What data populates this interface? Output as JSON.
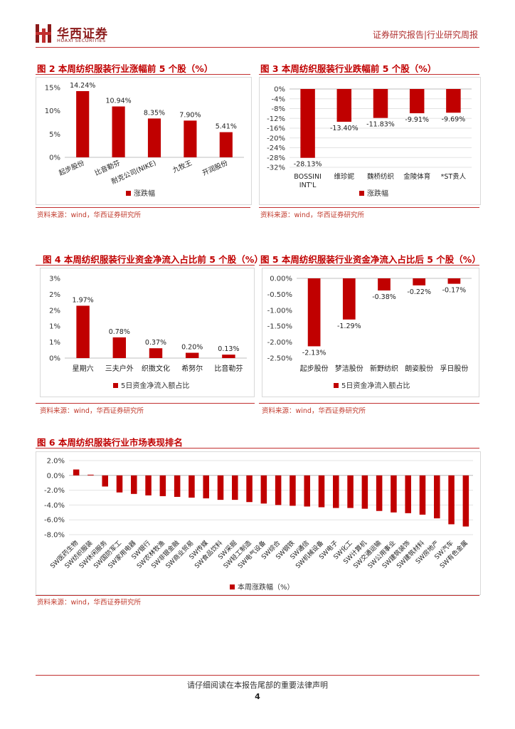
{
  "header": {
    "logo_cn": "华西证券",
    "logo_en": "HUAXI SECURITIES",
    "report_type": "证券研究报告|行业研究周报"
  },
  "source_text": "资料来源：wind，华西证券研究所",
  "colors": {
    "bar": "#c00000",
    "title": "#c00000",
    "rule": "#c23030"
  },
  "charts": [
    {
      "fig_title": "图 2 本周纺织服装行业涨幅前 5 个股（%）",
      "chart_data": {
        "type": "bar",
        "categories": [
          "起步股份",
          "比音勒芬",
          "耐克公司(NIKE)",
          "九牧王",
          "开润股份"
        ],
        "values": [
          14.24,
          10.94,
          8.35,
          7.9,
          5.41
        ],
        "value_labels": [
          "14.24%",
          "10.94%",
          "8.35%",
          "7.90%",
          "5.41%"
        ],
        "y_ticks": [
          "0%",
          "5%",
          "10%",
          "15%"
        ],
        "ylim": [
          0,
          15
        ],
        "legend": "涨跌幅",
        "title": "",
        "xlabel": "",
        "ylabel": ""
      }
    },
    {
      "fig_title": "图 3 本周纺织服装行业跌幅前 5 个股（%）",
      "chart_data": {
        "type": "bar",
        "categories": [
          "BOSSINI INT'L",
          "维珍妮",
          "魏桥纺织",
          "金陵体育",
          "*ST贵人"
        ],
        "values": [
          -28.13,
          -13.4,
          -11.83,
          -9.91,
          -9.69
        ],
        "value_labels": [
          "-28.13%",
          "-13.40%",
          "-11.83%",
          "-9.91%",
          "-9.69%"
        ],
        "y_ticks": [
          "0%",
          "-4%",
          "-8%",
          "-12%",
          "-16%",
          "-20%",
          "-24%",
          "-28%",
          "-32%"
        ],
        "ylim": [
          -32,
          0
        ],
        "legend": "涨跌幅",
        "title": "",
        "xlabel": "",
        "ylabel": ""
      }
    },
    {
      "fig_title": "图 4 本周纺织服装行业资金净流入占比前 5 个股（%）",
      "chart_data": {
        "type": "bar",
        "categories": [
          "星期六",
          "三夫户外",
          "织擞文化",
          "希努尔",
          "比音勒芬"
        ],
        "values": [
          1.97,
          0.78,
          0.37,
          0.2,
          0.13
        ],
        "value_labels": [
          "1.97%",
          "0.78%",
          "0.37%",
          "0.20%",
          "0.13%"
        ],
        "y_ticks": [
          "0%",
          "1%",
          "1%",
          "2%",
          "2%",
          "3%"
        ],
        "ylim": [
          0,
          3
        ],
        "legend": "5日资金净流入额占比",
        "title": "",
        "xlabel": "",
        "ylabel": ""
      }
    },
    {
      "fig_title": "图 5 本周纺织服装行业资金净流入占比后 5 个股（%）",
      "chart_data": {
        "type": "bar",
        "categories": [
          "起步股份",
          "梦洁股份",
          "新野纺织",
          "朗姿股份",
          "孚日股份"
        ],
        "values": [
          -2.13,
          -1.29,
          -0.38,
          -0.22,
          -0.17
        ],
        "value_labels": [
          "-2.13%",
          "-1.29%",
          "-0.38%",
          "-0.22%",
          "-0.17%"
        ],
        "y_ticks": [
          "0.00%",
          "-0.50%",
          "-1.00%",
          "-1.50%",
          "-2.00%",
          "-2.50%"
        ],
        "ylim": [
          -2.5,
          0
        ],
        "legend": "5日资金净流入额占比",
        "title": "",
        "xlabel": "",
        "ylabel": ""
      }
    },
    {
      "fig_title": "图 6 本周纺织服装行业市场表现排名",
      "chart_data": {
        "type": "bar",
        "categories": [
          "SW医药生物",
          "SW纺织服装",
          "SW休闲服务",
          "SW国防军工",
          "SW家用电器",
          "SW银行",
          "SW农林牧渔",
          "SW非银金融",
          "SW商业贸易",
          "SW传媒",
          "SW食品饮料",
          "SW采掘",
          "SW轻工制造",
          "SW电气设备",
          "SW综合",
          "SW钢铁",
          "SW通信",
          "SW机械设备",
          "SW电子",
          "SW化工",
          "SW计算机",
          "SW交通运输",
          "SW公用事业",
          "SW建筑装饰",
          "SW建筑材料",
          "SW房地产",
          "SW汽车",
          "SW有色金属"
        ],
        "values": [
          0.8,
          0.1,
          -1.5,
          -2.3,
          -2.5,
          -2.7,
          -2.8,
          -2.9,
          -3.0,
          -3.1,
          -3.3,
          -3.3,
          -3.6,
          -3.8,
          -4.0,
          -4.1,
          -4.2,
          -4.3,
          -4.4,
          -4.4,
          -4.5,
          -4.8,
          -5.0,
          -5.1,
          -5.3,
          -5.8,
          -6.6,
          -6.9
        ],
        "y_ticks": [
          "2.0%",
          "0.0%",
          "-2.0%",
          "-4.0%",
          "-6.0%",
          "-8.0%"
        ],
        "ylim": [
          -8,
          2
        ],
        "legend": "本周涨跌幅（%）",
        "title": "",
        "xlabel": "",
        "ylabel": ""
      }
    }
  ],
  "footer": {
    "disclaimer": "请仔细阅读在本报告尾部的重要法律声明",
    "page_number": "4"
  }
}
